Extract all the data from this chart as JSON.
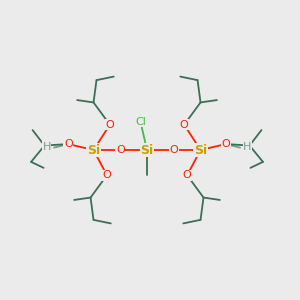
{
  "background_color": "#ebebeb",
  "si_color": "#c8a000",
  "o_color": "#ff2200",
  "cl_color": "#44bb44",
  "h_color": "#7a9a8a",
  "bond_color": "#3a7055",
  "figsize": [
    3.0,
    3.0
  ],
  "dpi": 100,
  "si1": [
    0.31,
    0.5
  ],
  "si2": [
    0.49,
    0.5
  ],
  "si3": [
    0.67,
    0.5
  ]
}
